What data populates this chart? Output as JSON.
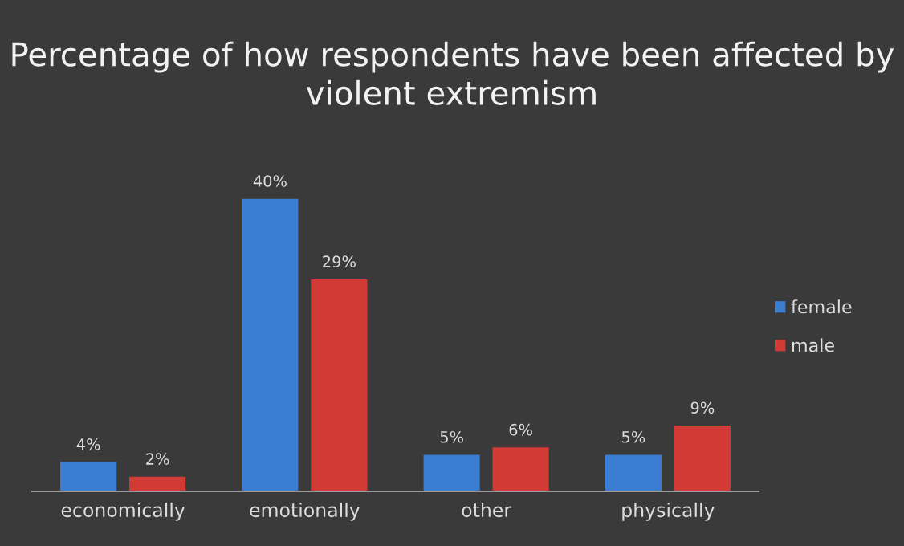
{
  "chart_data": {
    "type": "bar",
    "title": "Percentage of how respondents have been affected by violent extremism",
    "categories": [
      "economically",
      "emotionally",
      "other",
      "physically"
    ],
    "series": [
      {
        "name": "female",
        "color": "#3b7dd0",
        "values": [
          4,
          40,
          5,
          5
        ],
        "value_labels": [
          "4%",
          "40%",
          "5%",
          "5%"
        ]
      },
      {
        "name": "male",
        "color": "#d23a36",
        "values": [
          2,
          29,
          6,
          9
        ],
        "value_labels": [
          "2%",
          "29%",
          "6%",
          "9%"
        ]
      }
    ],
    "legend": "right",
    "grid": false
  }
}
